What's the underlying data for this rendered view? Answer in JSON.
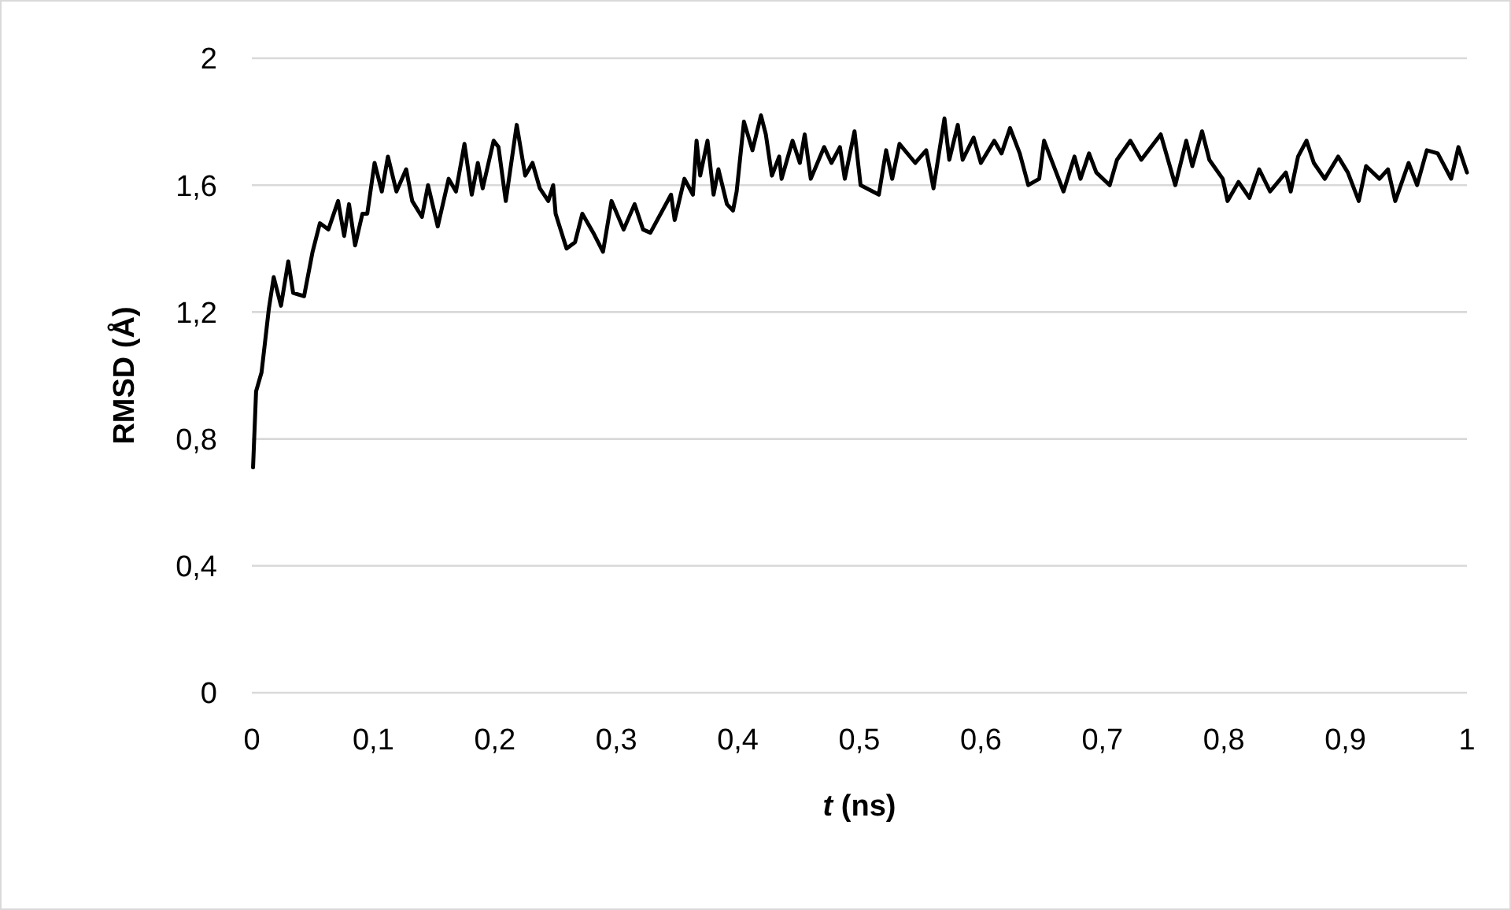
{
  "chart_data": {
    "type": "line",
    "xlabel": "t (ns)",
    "ylabel": "RMSD (Å)",
    "xlim": [
      0,
      1
    ],
    "ylim": [
      0,
      2
    ],
    "xticks": [
      0,
      {
        "value": 0.1,
        "label": "0,1"
      },
      {
        "value": 0.2,
        "label": "0,2"
      },
      {
        "value": 0.3,
        "label": "0,3"
      },
      {
        "value": 0.4,
        "label": "0,4"
      },
      {
        "value": 0.5,
        "label": "0,5"
      },
      {
        "value": 0.6,
        "label": "0,6"
      },
      {
        "value": 0.7,
        "label": "0,7"
      },
      {
        "value": 0.8,
        "label": "0,8"
      },
      {
        "value": 0.9,
        "label": "0,9"
      },
      1
    ],
    "yticks": [
      0,
      {
        "value": 0.4,
        "label": "0,4"
      },
      {
        "value": 0.8,
        "label": "0,8"
      },
      {
        "value": 1.2,
        "label": "1,2"
      },
      {
        "value": 1.6,
        "label": "1,6"
      },
      2
    ],
    "grid": "y",
    "marker": "none",
    "line_style": "solid",
    "series": [
      {
        "color": "#000000",
        "x": [
          0.001,
          0.0035,
          0.008,
          0.011,
          0.014,
          0.018,
          0.024,
          0.03,
          0.034,
          0.043,
          0.05,
          0.056,
          0.063,
          0.071,
          0.076,
          0.08,
          0.085,
          0.091,
          0.095,
          0.101,
          0.107,
          0.112,
          0.119,
          0.127,
          0.132,
          0.14,
          0.145,
          0.153,
          0.162,
          0.168,
          0.175,
          0.181,
          0.186,
          0.19,
          0.199,
          0.203,
          0.209,
          0.218,
          0.225,
          0.231,
          0.237,
          0.244,
          0.248,
          0.25,
          0.259,
          0.266,
          0.272,
          0.281,
          0.289,
          0.296,
          0.306,
          0.315,
          0.322,
          0.328,
          0.345,
          0.348,
          0.356,
          0.363,
          0.366,
          0.369,
          0.375,
          0.38,
          0.384,
          0.391,
          0.396,
          0.399,
          0.405,
          0.412,
          0.419,
          0.423,
          0.428,
          0.434,
          0.436,
          0.445,
          0.451,
          0.455,
          0.46,
          0.471,
          0.477,
          0.484,
          0.488,
          0.496,
          0.501,
          0.516,
          0.522,
          0.527,
          0.533,
          0.546,
          0.555,
          0.561,
          0.57,
          0.574,
          0.581,
          0.585,
          0.594,
          0.6,
          0.611,
          0.617,
          0.624,
          0.632,
          0.639,
          0.648,
          0.652,
          0.661,
          0.668,
          0.677,
          0.682,
          0.689,
          0.695,
          0.706,
          0.712,
          0.723,
          0.732,
          0.748,
          0.76,
          0.769,
          0.774,
          0.782,
          0.788,
          0.799,
          0.803,
          0.812,
          0.821,
          0.829,
          0.838,
          0.851,
          0.855,
          0.861,
          0.868,
          0.874,
          0.883,
          0.894,
          0.902,
          0.911,
          0.917,
          0.928,
          0.935,
          0.941,
          0.952,
          0.959,
          0.967,
          0.976,
          0.987,
          0.993,
          1.0
        ],
        "values": [
          0.71,
          0.95,
          1.01,
          1.11,
          1.21,
          1.31,
          1.22,
          1.36,
          1.26,
          1.25,
          1.39,
          1.48,
          1.46,
          1.55,
          1.44,
          1.54,
          1.41,
          1.51,
          1.51,
          1.67,
          1.58,
          1.69,
          1.58,
          1.65,
          1.55,
          1.5,
          1.6,
          1.47,
          1.62,
          1.58,
          1.73,
          1.57,
          1.67,
          1.59,
          1.74,
          1.72,
          1.55,
          1.79,
          1.63,
          1.67,
          1.59,
          1.55,
          1.6,
          1.51,
          1.4,
          1.42,
          1.51,
          1.45,
          1.39,
          1.55,
          1.46,
          1.54,
          1.46,
          1.45,
          1.57,
          1.49,
          1.62,
          1.57,
          1.74,
          1.63,
          1.74,
          1.57,
          1.65,
          1.54,
          1.52,
          1.58,
          1.8,
          1.71,
          1.82,
          1.76,
          1.63,
          1.69,
          1.62,
          1.74,
          1.67,
          1.76,
          1.62,
          1.72,
          1.67,
          1.72,
          1.62,
          1.77,
          1.6,
          1.57,
          1.71,
          1.62,
          1.73,
          1.67,
          1.71,
          1.59,
          1.81,
          1.68,
          1.79,
          1.68,
          1.75,
          1.67,
          1.74,
          1.7,
          1.78,
          1.7,
          1.6,
          1.62,
          1.74,
          1.65,
          1.58,
          1.69,
          1.62,
          1.7,
          1.64,
          1.6,
          1.68,
          1.74,
          1.68,
          1.76,
          1.6,
          1.74,
          1.66,
          1.77,
          1.68,
          1.62,
          1.55,
          1.61,
          1.56,
          1.65,
          1.58,
          1.64,
          1.58,
          1.69,
          1.74,
          1.67,
          1.62,
          1.69,
          1.64,
          1.55,
          1.66,
          1.62,
          1.65,
          1.55,
          1.67,
          1.6,
          1.71,
          1.7,
          1.62,
          1.72,
          1.64
        ]
      }
    ]
  }
}
